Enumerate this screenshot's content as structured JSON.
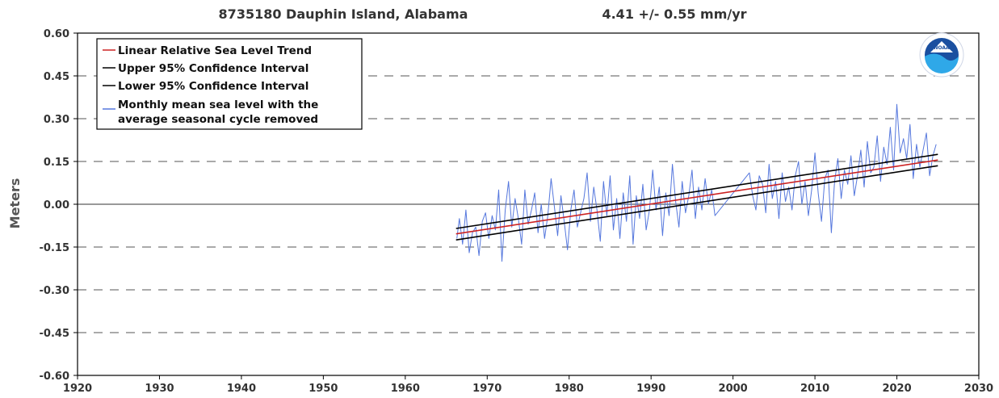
{
  "chart_data": {
    "type": "line",
    "title": "8735180 Dauphin Island, Alabama",
    "trend_text": "4.41 +/-  0.55 mm/yr",
    "ylabel": "Meters",
    "xlabel": "",
    "xlim": [
      1920,
      2030
    ],
    "ylim": [
      -0.6,
      0.6
    ],
    "x_ticks": [
      1920,
      1930,
      1940,
      1950,
      1960,
      1970,
      1980,
      1990,
      2000,
      2010,
      2020,
      2030
    ],
    "y_ticks": [
      0.6,
      0.45,
      0.3,
      0.15,
      0.0,
      -0.15,
      -0.3,
      -0.45,
      -0.6
    ],
    "y_tick_labels": [
      "0.60",
      "0.45",
      "0.30",
      "0.15",
      "0.00",
      "-0.15",
      "-0.30",
      "-0.45",
      "-0.60"
    ],
    "grid": "horizontal dashed",
    "legend_position": "top-left",
    "logo": "NOAA",
    "series": [
      {
        "name": "Linear Relative Sea Level Trend",
        "color": "#cc2222",
        "x": [
          1966.2,
          2025.0
        ],
        "y": [
          -0.104,
          0.155
        ]
      },
      {
        "name": "Upper 95% Confidence Interval",
        "color": "#000000",
        "x": [
          1966.2,
          2025.0
        ],
        "y": [
          -0.085,
          0.175
        ]
      },
      {
        "name": "Lower 95% Confidence Interval",
        "color": "#000000",
        "x": [
          1966.2,
          2025.0
        ],
        "y": [
          -0.125,
          0.135
        ]
      },
      {
        "name": "Monthly mean sea level with the average seasonal cycle removed",
        "color": "#5577dd",
        "x": [
          1966.3,
          1966.6,
          1967.0,
          1967.4,
          1967.8,
          1968.2,
          1968.6,
          1969.0,
          1969.4,
          1969.8,
          1970.2,
          1970.6,
          1971.0,
          1971.4,
          1971.8,
          1972.2,
          1972.6,
          1973.0,
          1973.4,
          1973.8,
          1974.2,
          1974.6,
          1975.0,
          1975.4,
          1975.8,
          1976.2,
          1976.6,
          1977.0,
          1977.4,
          1977.8,
          1978.2,
          1978.6,
          1979.0,
          1979.4,
          1979.8,
          1980.2,
          1980.6,
          1981.0,
          1981.4,
          1981.8,
          1982.2,
          1982.6,
          1983.0,
          1983.4,
          1983.8,
          1984.2,
          1984.6,
          1985.0,
          1985.4,
          1985.8,
          1986.2,
          1986.6,
          1987.0,
          1987.4,
          1987.8,
          1988.2,
          1988.6,
          1989.0,
          1989.4,
          1989.8,
          1990.2,
          1990.6,
          1991.0,
          1991.4,
          1991.8,
          1992.2,
          1992.6,
          1993.0,
          1993.4,
          1993.8,
          1994.2,
          1994.6,
          1995.0,
          1995.4,
          1995.8,
          1996.2,
          1996.6,
          1997.0,
          1997.4,
          1997.8,
          2002.0,
          2002.4,
          2002.8,
          2003.2,
          2003.6,
          2004.0,
          2004.4,
          2004.8,
          2005.2,
          2005.6,
          2006.0,
          2006.4,
          2006.8,
          2007.2,
          2007.6,
          2008.0,
          2008.4,
          2008.8,
          2009.2,
          2009.6,
          2010.0,
          2010.4,
          2010.8,
          2011.2,
          2011.6,
          2012.0,
          2012.4,
          2012.8,
          2013.2,
          2013.6,
          2014.0,
          2014.4,
          2014.8,
          2015.2,
          2015.6,
          2016.0,
          2016.4,
          2016.8,
          2017.2,
          2017.6,
          2018.0,
          2018.4,
          2018.8,
          2019.2,
          2019.6,
          2020.0,
          2020.4,
          2020.8,
          2021.2,
          2021.6,
          2022.0,
          2022.4,
          2022.8,
          2023.2,
          2023.6,
          2024.0,
          2024.4,
          2024.8
        ],
        "y": [
          -0.12,
          -0.05,
          -0.14,
          -0.02,
          -0.17,
          -0.1,
          -0.08,
          -0.18,
          -0.06,
          -0.03,
          -0.12,
          -0.04,
          -0.09,
          0.05,
          -0.2,
          -0.02,
          0.08,
          -0.08,
          0.02,
          -0.05,
          -0.14,
          0.05,
          -0.07,
          -0.02,
          0.04,
          -0.1,
          0.0,
          -0.12,
          -0.04,
          0.09,
          -0.01,
          -0.11,
          0.03,
          -0.06,
          -0.16,
          -0.02,
          0.05,
          -0.08,
          -0.03,
          0.02,
          0.11,
          -0.06,
          0.06,
          -0.02,
          -0.13,
          0.08,
          -0.04,
          0.1,
          -0.09,
          0.02,
          -0.12,
          0.04,
          -0.06,
          0.1,
          -0.14,
          0.03,
          -0.05,
          0.07,
          -0.09,
          -0.02,
          0.12,
          -0.02,
          0.06,
          -0.11,
          0.04,
          -0.04,
          0.14,
          0.01,
          -0.08,
          0.08,
          -0.03,
          0.03,
          0.12,
          -0.05,
          0.06,
          -0.02,
          0.09,
          0.0,
          0.05,
          -0.04,
          0.11,
          0.03,
          -0.02,
          0.1,
          0.07,
          -0.03,
          0.14,
          0.02,
          0.08,
          -0.05,
          0.11,
          0.01,
          0.06,
          -0.02,
          0.1,
          0.15,
          0.0,
          0.08,
          -0.04,
          0.05,
          0.18,
          0.04,
          -0.06,
          0.09,
          0.12,
          -0.1,
          0.08,
          0.16,
          0.02,
          0.12,
          0.07,
          0.17,
          0.03,
          0.1,
          0.19,
          0.06,
          0.22,
          0.11,
          0.13,
          0.24,
          0.08,
          0.2,
          0.14,
          0.27,
          0.12,
          0.35,
          0.18,
          0.23,
          0.16,
          0.28,
          0.09,
          0.21,
          0.13,
          0.19,
          0.25,
          0.1,
          0.17,
          0.21
        ]
      }
    ]
  }
}
